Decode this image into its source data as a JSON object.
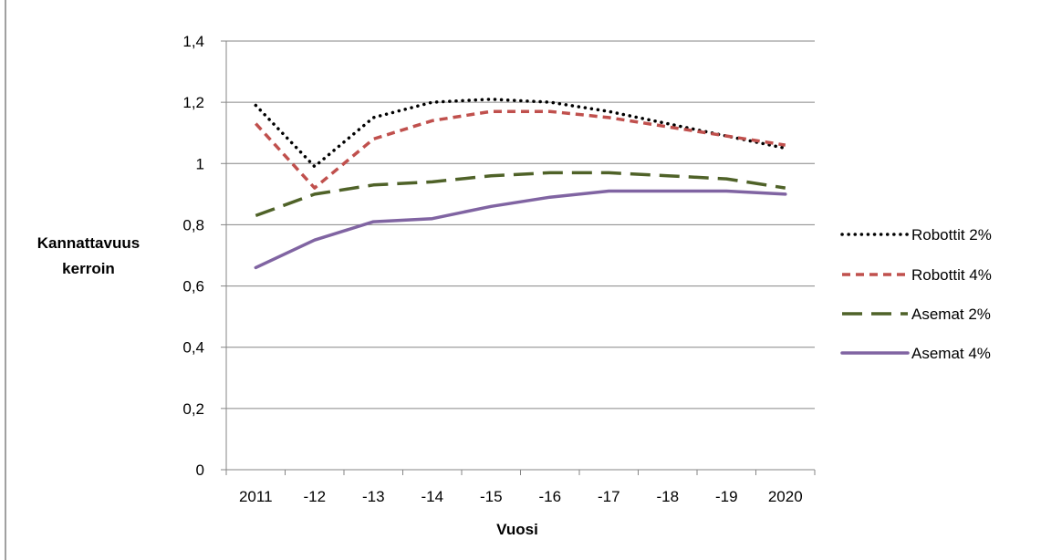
{
  "chart_data": {
    "type": "line",
    "title": "",
    "xlabel": "Vuosi",
    "ylabel": "Kannattavuus kerroin",
    "categories": [
      "2011",
      "-12",
      "-13",
      "-14",
      "-15",
      "-16",
      "-17",
      "-18",
      "-19",
      "2020"
    ],
    "y_ticks": [
      "0",
      "0,2",
      "0,4",
      "0,6",
      "0,8",
      "1",
      "1,2",
      "1,4"
    ],
    "ylim": [
      0,
      1.4
    ],
    "grid": "horizontal",
    "legend_position": "right",
    "series": [
      {
        "name": "Robottit 2%",
        "color": "#000000",
        "style": "dotted",
        "values": [
          1.19,
          0.99,
          1.15,
          1.2,
          1.21,
          1.2,
          1.17,
          1.13,
          1.09,
          1.05
        ]
      },
      {
        "name": "Robottit 4%",
        "color": "#c0504d",
        "style": "dashed",
        "values": [
          1.13,
          0.92,
          1.08,
          1.14,
          1.17,
          1.17,
          1.15,
          1.12,
          1.09,
          1.06
        ]
      },
      {
        "name": "Asemat 2%",
        "color": "#4f6228",
        "style": "long-dashed",
        "values": [
          0.83,
          0.9,
          0.93,
          0.94,
          0.96,
          0.97,
          0.97,
          0.96,
          0.95,
          0.92
        ]
      },
      {
        "name": "Asemat 4%",
        "color": "#8064a2",
        "style": "solid",
        "values": [
          0.66,
          0.75,
          0.81,
          0.82,
          0.86,
          0.89,
          0.91,
          0.91,
          0.91,
          0.9
        ]
      }
    ]
  }
}
